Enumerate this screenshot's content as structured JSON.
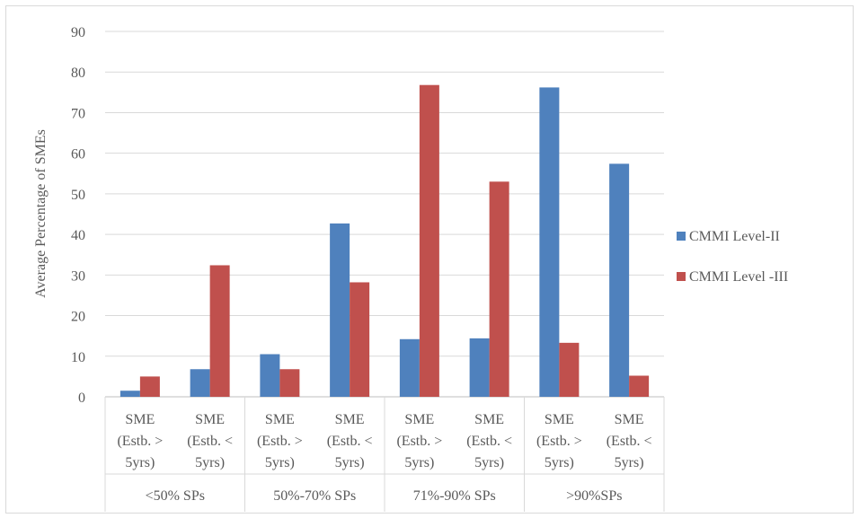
{
  "chart_data": {
    "type": "bar",
    "ylabel": "Average Percentage of SMEs",
    "ylim": [
      0,
      90
    ],
    "ytick_step": 10,
    "grid": true,
    "legend_position": "right",
    "groups": [
      "<50% SPs",
      "50%-70% SPs",
      "71%-90% SPs",
      ">90%SPs"
    ],
    "subcategories": [
      [
        "SME",
        "(Estb. >",
        "5yrs)"
      ],
      [
        "SME",
        "(Estb. <",
        "5yrs)"
      ]
    ],
    "categories": [
      "SME (Estb. > 5yrs)",
      "SME (Estb. < 5yrs)",
      "SME (Estb. > 5yrs)",
      "SME (Estb. < 5yrs)",
      "SME (Estb. > 5yrs)",
      "SME (Estb. < 5yrs)",
      "SME (Estb. > 5yrs)",
      "SME (Estb. < 5yrs)"
    ],
    "series": [
      {
        "name": "CMMI Level-II",
        "color": "#4f81bd",
        "values": [
          1.5,
          6.8,
          10.5,
          42.7,
          14.2,
          14.4,
          76.2,
          57.4
        ]
      },
      {
        "name": "CMMI Level -III",
        "color": "#c0504d",
        "values": [
          5.0,
          32.4,
          6.8,
          28.2,
          76.8,
          53.0,
          13.3,
          5.2
        ]
      }
    ]
  }
}
